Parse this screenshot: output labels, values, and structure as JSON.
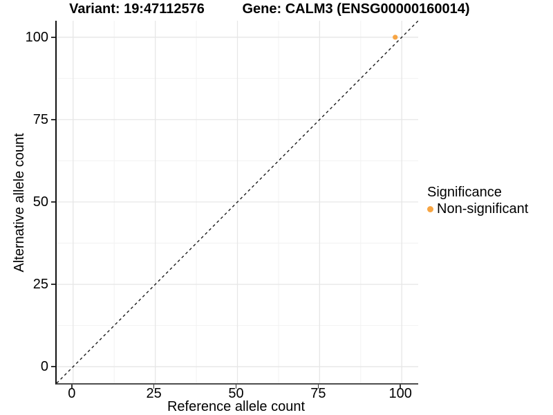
{
  "titles": {
    "variant": "Variant: 19:47112576",
    "gene": "Gene: CALM3 (ENSG00000160014)"
  },
  "chart_data": {
    "type": "scatter",
    "xlabel": "Reference allele count",
    "ylabel": "Alternative allele count",
    "xlim": [
      -5,
      105
    ],
    "ylim": [
      -5,
      105
    ],
    "x_ticks": [
      0,
      25,
      50,
      75,
      100
    ],
    "y_ticks": [
      0,
      25,
      50,
      75,
      100
    ],
    "grid": "major and minor gridlines on white background",
    "points": [
      {
        "x": 98,
        "y": 100,
        "series": "Non-significant"
      }
    ],
    "identity_line": {
      "style": "dashed",
      "slope": 1,
      "intercept": 0
    },
    "legend": {
      "title": "Significance",
      "position": "right",
      "items": [
        {
          "label": "Non-significant",
          "color": "#F7A543"
        }
      ]
    }
  },
  "colors": {
    "background": "#FFFFFF",
    "grid_major": "#E6E6E6",
    "grid_minor": "#F2F2F2",
    "dashed_line": "#1A1A1A",
    "tick": "#333333",
    "text": "#000000",
    "point": "#F7A543"
  }
}
